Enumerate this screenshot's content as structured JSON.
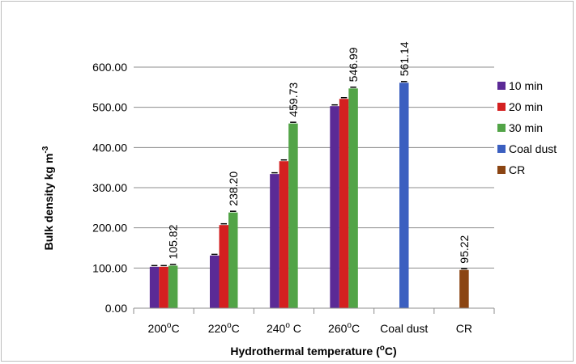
{
  "chart_data": {
    "type": "bar",
    "xlabel": "Hydrothermal temperature (",
    "xlabel_sup": "o",
    "xlabel_end": "C)",
    "ylabel": "Bulk density kg m",
    "ylabel_sup": "-3",
    "ylim": [
      0,
      600
    ],
    "yticks": [
      "0.00",
      "100.00",
      "200.00",
      "300.00",
      "400.00",
      "500.00",
      "600.00"
    ],
    "grid": "horizontal",
    "legend_position": "right",
    "categories": [
      {
        "pre": "200",
        "sup": "o",
        "post": "C"
      },
      {
        "pre": "220",
        "sup": "o",
        "post": "C"
      },
      {
        "pre": "240",
        "sup": "o",
        "post": " C"
      },
      {
        "pre": "260",
        "sup": "o",
        "post": "C"
      },
      {
        "pre": "Coal dust",
        "sup": "",
        "post": ""
      },
      {
        "pre": "CR",
        "sup": "",
        "post": ""
      }
    ],
    "series": [
      {
        "name": "10 min",
        "color": "#5b2a96",
        "values": [
          103,
          131,
          334,
          503,
          null,
          null
        ]
      },
      {
        "name": "20 min",
        "color": "#d42020",
        "values": [
          103,
          207,
          366,
          521,
          null,
          null
        ]
      },
      {
        "name": "30 min",
        "color": "#52a447",
        "values": [
          105.82,
          238.2,
          459.73,
          546.99,
          null,
          null
        ]
      },
      {
        "name": "Coal dust",
        "color": "#3b5fc0",
        "values": [
          null,
          null,
          null,
          null,
          561.14,
          null
        ]
      },
      {
        "name": "CR",
        "color": "#8b4513",
        "values": [
          null,
          null,
          null,
          null,
          null,
          95.22
        ]
      }
    ],
    "data_labels": [
      {
        "series": 2,
        "category": 0,
        "text": "105.82"
      },
      {
        "series": 2,
        "category": 1,
        "text": "238.20"
      },
      {
        "series": 2,
        "category": 2,
        "text": "459.73"
      },
      {
        "series": 2,
        "category": 3,
        "text": "546.99"
      },
      {
        "series": 3,
        "category": 4,
        "text": "561.14"
      },
      {
        "series": 4,
        "category": 5,
        "text": "95.22"
      }
    ]
  }
}
